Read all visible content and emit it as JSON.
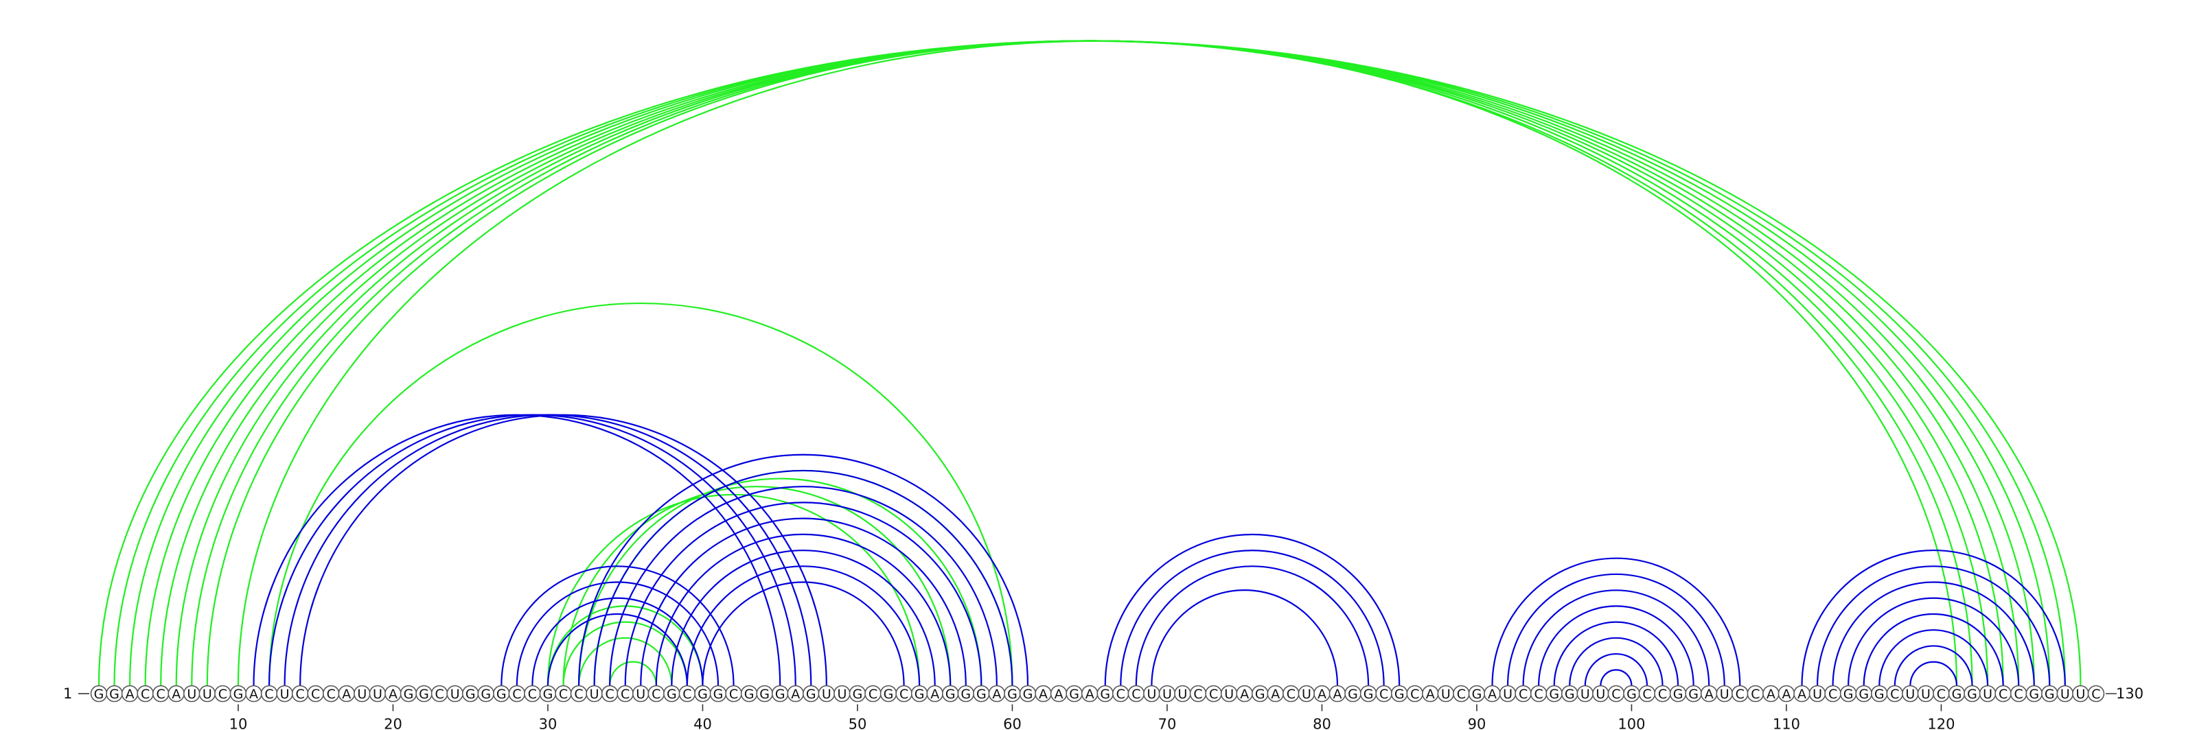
{
  "diagram": {
    "sequence": "GGACCAUUCGACUCCCAUUAGGCUGGGCCGCCUCCUCGCGGCGGGAGUUGCGCGAGGGAGGAAGAGCCUUUCCUAGACUAAGGCGCAUCGAUCCGGUUCGCCGGAUCCAAAUCGGGCUUCGGUCCGGUUC",
    "start_label": "1",
    "end_label": "130",
    "ticks": [
      10,
      20,
      30,
      40,
      50,
      60,
      70,
      80,
      90,
      100,
      110,
      120
    ],
    "colors": {
      "structure_a": "#0000dd",
      "structure_b": "#22ee22"
    },
    "arcs": [
      {
        "structure": "b",
        "i": 1,
        "j": 129
      },
      {
        "structure": "b",
        "i": 2,
        "j": 128
      },
      {
        "structure": "b",
        "i": 3,
        "j": 127
      },
      {
        "structure": "b",
        "i": 4,
        "j": 126
      },
      {
        "structure": "b",
        "i": 5,
        "j": 125
      },
      {
        "structure": "b",
        "i": 6,
        "j": 124
      },
      {
        "structure": "b",
        "i": 7,
        "j": 123
      },
      {
        "structure": "b",
        "i": 8,
        "j": 122
      },
      {
        "structure": "b",
        "i": 10,
        "j": 121
      },
      {
        "structure": "b",
        "i": 12,
        "j": 60
      },
      {
        "structure": "b",
        "i": 30,
        "j": 54
      },
      {
        "structure": "b",
        "i": 31,
        "j": 56
      },
      {
        "structure": "b",
        "i": 32,
        "j": 58
      },
      {
        "structure": "b",
        "i": 33,
        "j": 60
      },
      {
        "structure": "b",
        "i": 30,
        "j": 40
      },
      {
        "structure": "b",
        "i": 31,
        "j": 39
      },
      {
        "structure": "b",
        "i": 32,
        "j": 38
      },
      {
        "structure": "b",
        "i": 34,
        "j": 37
      },
      {
        "structure": "a",
        "i": 11,
        "j": 45
      },
      {
        "structure": "a",
        "i": 12,
        "j": 46
      },
      {
        "structure": "a",
        "i": 13,
        "j": 47
      },
      {
        "structure": "a",
        "i": 14,
        "j": 48
      },
      {
        "structure": "a",
        "i": 27,
        "j": 42
      },
      {
        "structure": "a",
        "i": 28,
        "j": 41
      },
      {
        "structure": "a",
        "i": 29,
        "j": 40
      },
      {
        "structure": "a",
        "i": 30,
        "j": 39
      },
      {
        "structure": "a",
        "i": 32,
        "j": 61
      },
      {
        "structure": "a",
        "i": 33,
        "j": 60
      },
      {
        "structure": "a",
        "i": 34,
        "j": 59
      },
      {
        "structure": "a",
        "i": 35,
        "j": 58
      },
      {
        "structure": "a",
        "i": 36,
        "j": 57
      },
      {
        "structure": "a",
        "i": 37,
        "j": 56
      },
      {
        "structure": "a",
        "i": 38,
        "j": 55
      },
      {
        "structure": "a",
        "i": 39,
        "j": 54
      },
      {
        "structure": "a",
        "i": 40,
        "j": 53
      },
      {
        "structure": "a",
        "i": 66,
        "j": 85
      },
      {
        "structure": "a",
        "i": 67,
        "j": 84
      },
      {
        "structure": "a",
        "i": 68,
        "j": 83
      },
      {
        "structure": "a",
        "i": 69,
        "j": 81
      },
      {
        "structure": "a",
        "i": 91,
        "j": 107
      },
      {
        "structure": "a",
        "i": 92,
        "j": 106
      },
      {
        "structure": "a",
        "i": 93,
        "j": 105
      },
      {
        "structure": "a",
        "i": 94,
        "j": 104
      },
      {
        "structure": "a",
        "i": 95,
        "j": 103
      },
      {
        "structure": "a",
        "i": 96,
        "j": 102
      },
      {
        "structure": "a",
        "i": 97,
        "j": 101
      },
      {
        "structure": "a",
        "i": 98,
        "j": 100
      },
      {
        "structure": "a",
        "i": 111,
        "j": 128
      },
      {
        "structure": "a",
        "i": 112,
        "j": 127
      },
      {
        "structure": "a",
        "i": 113,
        "j": 126
      },
      {
        "structure": "a",
        "i": 114,
        "j": 125
      },
      {
        "structure": "a",
        "i": 115,
        "j": 124
      },
      {
        "structure": "a",
        "i": 116,
        "j": 123
      },
      {
        "structure": "a",
        "i": 117,
        "j": 122
      },
      {
        "structure": "a",
        "i": 118,
        "j": 121
      }
    ]
  }
}
